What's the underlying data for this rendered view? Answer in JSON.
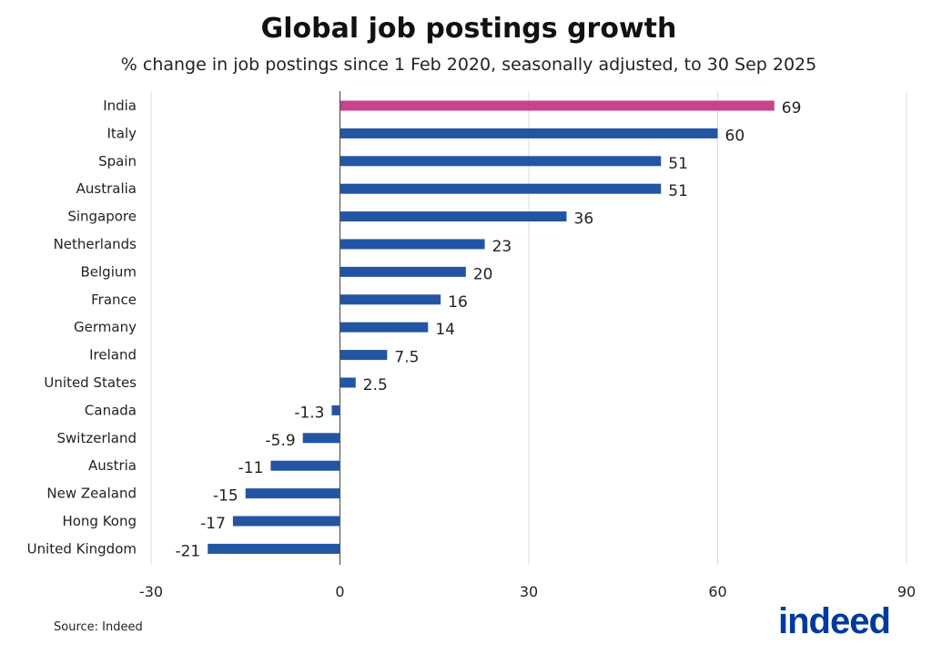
{
  "chart_data": {
    "type": "bar",
    "orientation": "horizontal",
    "title": "Global job postings growth",
    "subtitle": "% change in job postings since 1 Feb 2020, seasonally adjusted, to 30 Sep 2025",
    "categories": [
      "India",
      "Italy",
      "Spain",
      "Australia",
      "Singapore",
      "Netherlands",
      "Belgium",
      "France",
      "Germany",
      "Ireland",
      "United States",
      "Canada",
      "Switzerland",
      "Austria",
      "New Zealand",
      "Hong Kong",
      "United Kingdom"
    ],
    "values": [
      69,
      60,
      51,
      51,
      36,
      23,
      20,
      16,
      14,
      7.5,
      2.5,
      -1.3,
      -5.9,
      -11,
      -15,
      -17,
      -21
    ],
    "data_labels": [
      "69",
      "60",
      "51",
      "51",
      "36",
      "23",
      "20",
      "16",
      "14",
      "7.5",
      "2.5",
      "-1.3",
      "-5.9",
      "-11",
      "-15",
      "-17",
      "-21"
    ],
    "highlight": "India",
    "xlim": [
      -30,
      90
    ],
    "xticks": [
      "-30",
      "0",
      "30",
      "60",
      "90"
    ],
    "grid": true,
    "colors": {
      "default": "#2455a4",
      "highlight": "#c8438a"
    }
  },
  "source": "Source: Indeed",
  "logo": "indeed"
}
